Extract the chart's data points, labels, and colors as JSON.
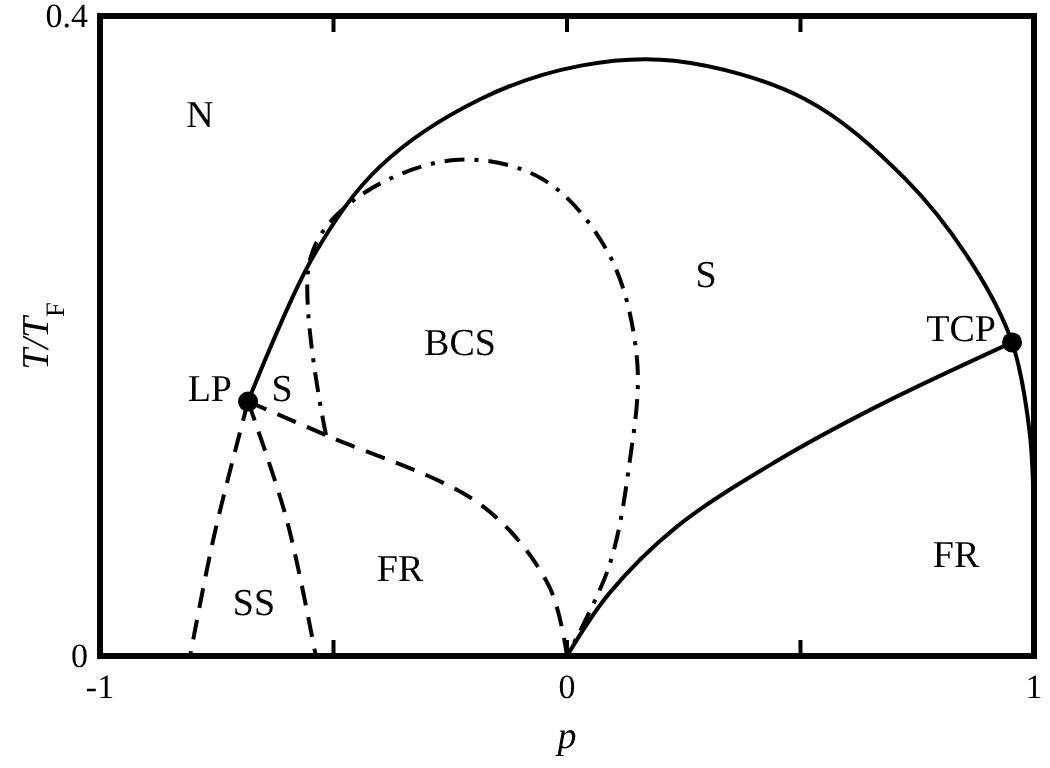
{
  "chart_data": {
    "type": "line",
    "xlabel": "p",
    "ylabel": "T/T$_{F}$",
    "xlim": [
      -1,
      1
    ],
    "ylim": [
      0,
      0.4
    ],
    "xticks": [
      -1,
      {
        "value": -0.5,
        "label": null
      },
      0,
      {
        "value": 0.5,
        "label": null
      },
      1
    ],
    "yticks": [
      0,
      0.4
    ],
    "grid": false,
    "series": [
      {
        "line_style": "solid",
        "color": "#000000",
        "x": [
          -0.683,
          -0.541,
          -0.4,
          -0.186,
          0.03,
          0.23,
          0.51,
          0.725,
          0.87,
          0.953,
          0.991,
          1,
          1
        ],
        "values": [
          0.159,
          0.251,
          0.306,
          0.348,
          0.369,
          0.372,
          0.348,
          0.298,
          0.244,
          0.196,
          0.139,
          0.076,
          0
        ]
      },
      {
        "line_style": "solid",
        "color": "#000000",
        "x": [
          0,
          0.09,
          0.236,
          0.45,
          0.664,
          0.953
        ],
        "values": [
          0,
          0.039,
          0.081,
          0.122,
          0.156,
          0.196
        ]
      },
      {
        "line_style": "dashed",
        "color": "#000000",
        "x": [
          -0.683,
          -0.516,
          -0.182,
          -0.039,
          0
        ],
        "values": [
          0.159,
          0.138,
          0.094,
          0.044,
          0
        ]
      },
      {
        "line_style": "dashed",
        "color": "#000000",
        "x": [
          -0.683,
          -0.755,
          -0.807
        ],
        "values": [
          0.159,
          0.076,
          0
        ]
      },
      {
        "line_style": "dashed",
        "color": "#000000",
        "x": [
          -0.683,
          -0.6,
          -0.538
        ],
        "values": [
          0.159,
          0.085,
          0
        ]
      },
      {
        "line_style": "dashdot",
        "color": "#000000",
        "x": [
          -0.516,
          -0.55,
          -0.456,
          -0.242,
          -0.052,
          0.09,
          0.15,
          0.133,
          0.09,
          0
        ],
        "values": [
          0.138,
          0.248,
          0.285,
          0.31,
          0.298,
          0.251,
          0.185,
          0.119,
          0.056,
          0
        ]
      },
      {
        "type": "scatter",
        "marker": "circle",
        "color": "#000000",
        "x": [
          -0.683,
          0.953
        ],
        "values": [
          0.159,
          0.196
        ]
      }
    ],
    "annotations": [
      "N",
      "S",
      "S",
      "BCS",
      "SS",
      "FR",
      "FR",
      {
        "text": "LP",
        "x": -0.683,
        "y": 0.159
      },
      {
        "text": "TCP",
        "x": 0.953,
        "y": 0.196
      }
    ]
  }
}
